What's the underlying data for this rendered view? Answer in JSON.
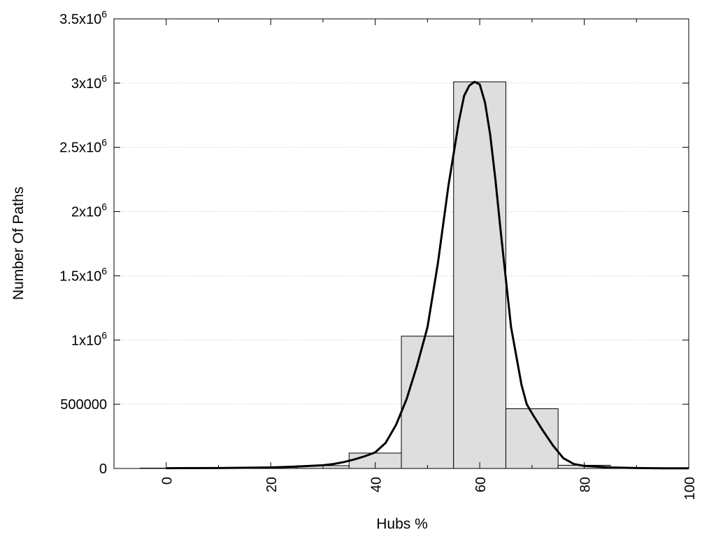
{
  "chart_data": {
    "type": "bar",
    "xlabel": "Hubs %",
    "ylabel": "Number Of Paths",
    "xlim": [
      -10,
      100
    ],
    "ylim": [
      0,
      3500000
    ],
    "x_ticks": [
      0,
      20,
      40,
      60,
      80,
      100
    ],
    "y_ticks": [
      {
        "value": 0,
        "label": "0"
      },
      {
        "value": 500000,
        "label": "500000"
      },
      {
        "value": 1000000,
        "label": "1x10",
        "exp": "6"
      },
      {
        "value": 1500000,
        "label": "1.5x10",
        "exp": "6"
      },
      {
        "value": 2000000,
        "label": "2x10",
        "exp": "6"
      },
      {
        "value": 2500000,
        "label": "2.5x10",
        "exp": "6"
      },
      {
        "value": 3000000,
        "label": "3x10",
        "exp": "6"
      },
      {
        "value": 3500000,
        "label": "3.5x10",
        "exp": "6"
      }
    ],
    "grid": true,
    "legend": "none",
    "bin_width": 10,
    "bins": [
      0,
      10,
      20,
      30,
      40,
      50,
      60,
      70,
      80,
      90,
      100
    ],
    "values": [
      3000,
      3000,
      8000,
      22000,
      120000,
      1030000,
      3010000,
      465000,
      25000,
      4000,
      1000
    ],
    "fit_curve": {
      "x": [
        0,
        10,
        20,
        25,
        30,
        32,
        34,
        36,
        38,
        40,
        42,
        44,
        46,
        48,
        50,
        52,
        54,
        56,
        57,
        58,
        59,
        60,
        61,
        62,
        63,
        64,
        66,
        68,
        69,
        70,
        72,
        74,
        76,
        78,
        80,
        85,
        90,
        95,
        100
      ],
      "y": [
        2000,
        3000,
        8000,
        15000,
        25000,
        35000,
        50000,
        70000,
        95000,
        125000,
        200000,
        340000,
        540000,
        800000,
        1100000,
        1600000,
        2200000,
        2700000,
        2900000,
        2980000,
        3010000,
        2990000,
        2850000,
        2600000,
        2250000,
        1850000,
        1100000,
        650000,
        500000,
        430000,
        300000,
        180000,
        80000,
        35000,
        20000,
        8000,
        3000,
        1500,
        1000
      ]
    },
    "colors": {
      "bar_fill": "#dedede",
      "bar_stroke": "#000000",
      "curve": "#000000",
      "grid": "#b4b4b4"
    }
  }
}
